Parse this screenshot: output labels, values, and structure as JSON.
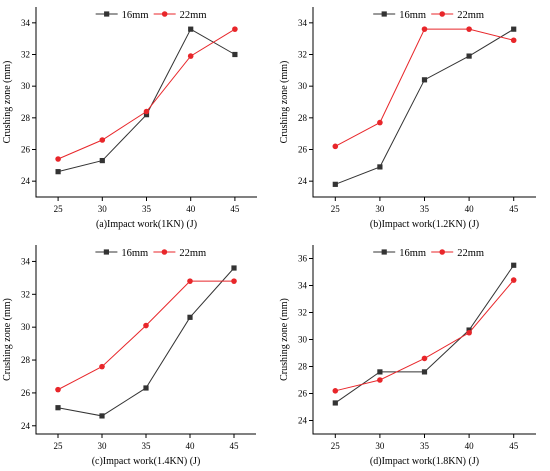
{
  "legend": {
    "series_16": "16mm",
    "series_22": "22mm"
  },
  "colors": {
    "series_16": "#333333",
    "series_22": "#e8262a"
  },
  "chart_data": [
    {
      "type": "line",
      "xlabel": "(a)Impact work(1KN) (J)",
      "ylabel": "Crushing zone (mm)",
      "x": [
        25,
        30,
        35,
        40,
        45
      ],
      "xlim": [
        22.5,
        47.5
      ],
      "ylim": [
        23,
        35
      ],
      "yticks": [
        24,
        26,
        28,
        30,
        32,
        34
      ],
      "grid": false,
      "legend_position": "top",
      "series": [
        {
          "name": "16mm",
          "marker": "square",
          "values": [
            24.6,
            25.3,
            28.2,
            33.6,
            32.0
          ]
        },
        {
          "name": "22mm",
          "marker": "circle",
          "values": [
            25.4,
            26.6,
            28.4,
            31.9,
            33.6
          ]
        }
      ]
    },
    {
      "type": "line",
      "xlabel": "(b)Impact work(1.2KN) (J)",
      "ylabel": "Crushing zone (mm)",
      "x": [
        25,
        30,
        35,
        40,
        45
      ],
      "xlim": [
        22.5,
        47.5
      ],
      "ylim": [
        23,
        35
      ],
      "yticks": [
        24,
        26,
        28,
        30,
        32,
        34
      ],
      "grid": false,
      "legend_position": "top",
      "series": [
        {
          "name": "16mm",
          "marker": "square",
          "values": [
            23.8,
            24.9,
            30.4,
            31.9,
            33.6
          ]
        },
        {
          "name": "22mm",
          "marker": "circle",
          "values": [
            26.2,
            27.7,
            33.6,
            33.6,
            32.9
          ]
        }
      ]
    },
    {
      "type": "line",
      "xlabel": "(c)Impact work(1.4KN) (J)",
      "ylabel": "Crushing zone (mm)",
      "x": [
        25,
        30,
        35,
        40,
        45
      ],
      "xlim": [
        22.5,
        47.5
      ],
      "ylim": [
        23.5,
        35
      ],
      "yticks": [
        24,
        26,
        28,
        30,
        32,
        34
      ],
      "grid": false,
      "legend_position": "top",
      "series": [
        {
          "name": "16mm",
          "marker": "square",
          "values": [
            25.1,
            24.6,
            26.3,
            30.6,
            33.6
          ]
        },
        {
          "name": "22mm",
          "marker": "circle",
          "values": [
            26.2,
            27.6,
            30.1,
            32.8,
            32.8
          ]
        }
      ]
    },
    {
      "type": "line",
      "xlabel": "(d)Impact work(1.8KN) (J)",
      "ylabel": "Crushing zone (mm)",
      "x": [
        25,
        30,
        35,
        40,
        45
      ],
      "xlim": [
        22.5,
        47.5
      ],
      "ylim": [
        23,
        37
      ],
      "yticks": [
        24,
        26,
        28,
        30,
        32,
        34,
        36
      ],
      "grid": false,
      "legend_position": "top",
      "series": [
        {
          "name": "16mm",
          "marker": "square",
          "values": [
            25.3,
            27.6,
            27.6,
            30.7,
            35.5
          ]
        },
        {
          "name": "22mm",
          "marker": "circle",
          "values": [
            26.2,
            27.0,
            28.6,
            30.5,
            34.4
          ]
        }
      ]
    }
  ]
}
